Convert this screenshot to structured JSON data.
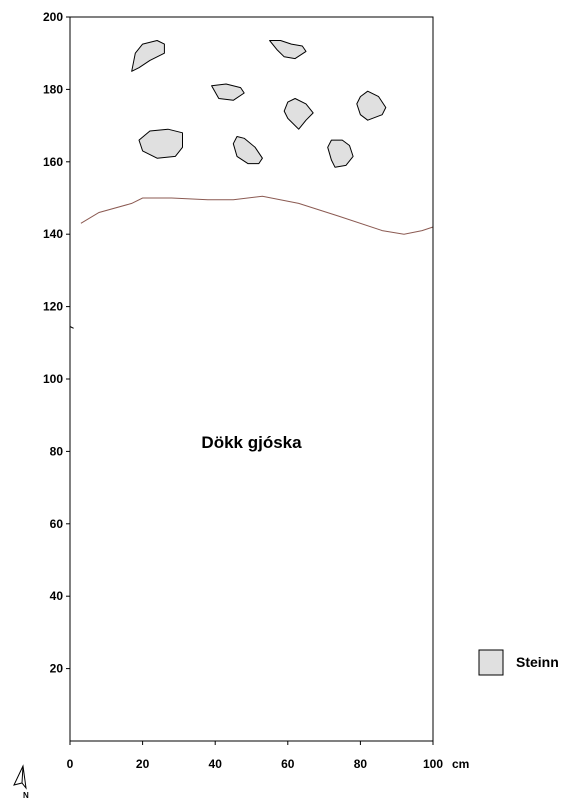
{
  "chart_data": {
    "type": "profile-drawing",
    "x_unit": "cm",
    "xlim": [
      0,
      100
    ],
    "ylim": [
      0,
      200
    ],
    "x_ticks": [
      0,
      20,
      40,
      60,
      80,
      100
    ],
    "y_ticks": [
      20,
      40,
      60,
      80,
      100,
      120,
      140,
      160,
      180,
      200
    ],
    "layer_boundary": [
      [
        3,
        143
      ],
      [
        8,
        146
      ],
      [
        17,
        148.5
      ],
      [
        20,
        150
      ],
      [
        28,
        150
      ],
      [
        38,
        149.5
      ],
      [
        45,
        149.5
      ],
      [
        53,
        150.5
      ],
      [
        63,
        148.5
      ],
      [
        74,
        145
      ],
      [
        86,
        141
      ],
      [
        92,
        140
      ],
      [
        97,
        141
      ],
      [
        100,
        142
      ]
    ],
    "left_edge_mark": [
      [
        0,
        114.5
      ],
      [
        1,
        114
      ]
    ],
    "layer_label": "Dökk gjóska",
    "layer_label_pos": [
      50,
      81
    ],
    "stones": [
      [
        [
          17,
          185
        ],
        [
          18,
          190
        ],
        [
          20,
          192.5
        ],
        [
          24,
          193.5
        ],
        [
          26,
          192.5
        ],
        [
          26,
          190
        ],
        [
          22,
          188
        ],
        [
          19,
          186
        ],
        [
          17,
          185
        ]
      ],
      [
        [
          19,
          166
        ],
        [
          22,
          168.5
        ],
        [
          27,
          169
        ],
        [
          31,
          168
        ],
        [
          31,
          164
        ],
        [
          29,
          161.5
        ],
        [
          24,
          161
        ],
        [
          20,
          163
        ],
        [
          19,
          166
        ]
      ],
      [
        [
          39,
          181
        ],
        [
          41,
          177.5
        ],
        [
          45,
          177
        ],
        [
          48,
          179
        ],
        [
          47,
          180.5
        ],
        [
          43,
          181.5
        ],
        [
          39,
          181
        ]
      ],
      [
        [
          45,
          165
        ],
        [
          46,
          167
        ],
        [
          48,
          166.5
        ],
        [
          51,
          164
        ],
        [
          53,
          161
        ],
        [
          52,
          159.5
        ],
        [
          49,
          159.5
        ],
        [
          46,
          161.5
        ],
        [
          45,
          165
        ]
      ],
      [
        [
          55,
          193.5
        ],
        [
          58,
          193.5
        ],
        [
          61,
          192.5
        ],
        [
          64,
          192
        ],
        [
          65,
          190.5
        ],
        [
          62,
          188.5
        ],
        [
          59,
          189
        ],
        [
          57,
          191
        ],
        [
          55,
          193.5
        ]
      ],
      [
        [
          59,
          174
        ],
        [
          60,
          176.5
        ],
        [
          62,
          177.5
        ],
        [
          65,
          176
        ],
        [
          67,
          173.5
        ],
        [
          65,
          171.5
        ],
        [
          63,
          169
        ],
        [
          60,
          172
        ],
        [
          59,
          174
        ]
      ],
      [
        [
          71,
          164
        ],
        [
          72,
          166
        ],
        [
          75,
          166
        ],
        [
          77,
          164.5
        ],
        [
          78,
          161.5
        ],
        [
          76,
          159
        ],
        [
          73,
          158.5
        ],
        [
          72,
          160.5
        ],
        [
          71,
          164
        ]
      ],
      [
        [
          79,
          176
        ],
        [
          80,
          178
        ],
        [
          82,
          179.5
        ],
        [
          85,
          178
        ],
        [
          87,
          175
        ],
        [
          86,
          173
        ],
        [
          82,
          171.5
        ],
        [
          80,
          173
        ],
        [
          79,
          176
        ]
      ]
    ],
    "legend": {
      "label": "Steinn",
      "position": "right",
      "fill": "#e0e0e0"
    },
    "colors": {
      "boundary": "#8b5a52",
      "stone_fill": "#e0e0e0",
      "frame": "#000000"
    }
  },
  "north_arrow": {
    "label": "N"
  }
}
